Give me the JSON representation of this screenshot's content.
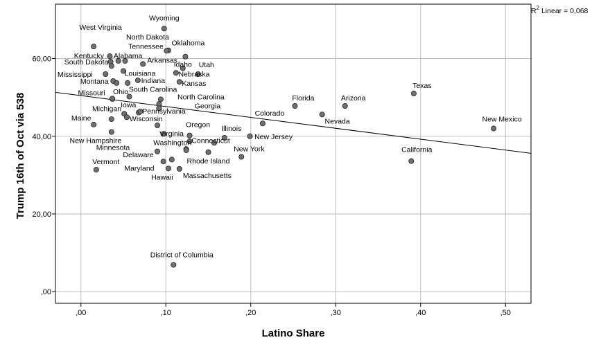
{
  "chart_data": {
    "type": "scatter",
    "xlabel": "Latino Share",
    "ylabel": "Trump 16th of Oct via 538",
    "xlim": [
      -0.03,
      0.53
    ],
    "ylim": [
      -3,
      74
    ],
    "x_ticks": [
      0.0,
      0.1,
      0.2,
      0.3,
      0.4,
      0.5
    ],
    "x_tick_labels": [
      ",00",
      ",10",
      ",20",
      ",30",
      ",40",
      ",50"
    ],
    "y_ticks": [
      0,
      20,
      40,
      60
    ],
    "y_tick_labels": [
      ",00",
      "20,00",
      "40,00",
      "60,00"
    ],
    "grid": true,
    "fit_line": {
      "label_prefix": "R",
      "label_sup": "2",
      "label_suffix": " Linear = 0,068",
      "x": [
        -0.03,
        0.53
      ],
      "y": [
        51.3,
        35.6
      ]
    },
    "colors": {
      "point_fill": "#707070",
      "point_stroke": "#222222",
      "grid": "#bdbdbd",
      "line": "#000000"
    },
    "points": [
      {
        "label": "Wyoming",
        "x": 0.098,
        "y": 67.7,
        "lx": 0,
        "ly": -12,
        "anchor": "middle"
      },
      {
        "label": "West Virginia",
        "x": 0.015,
        "y": 63.1,
        "lx": 10,
        "ly": -24,
        "anchor": "middle"
      },
      {
        "label": "North Dakota",
        "x": 0.103,
        "y": 62.1,
        "lx": -30,
        "ly": -16,
        "anchor": "middle"
      },
      {
        "label": "Tennessee",
        "x": 0.101,
        "y": 62.0,
        "lx": -30,
        "ly": -3,
        "anchor": "middle"
      },
      {
        "label": "Oklahoma",
        "x": 0.123,
        "y": 60.5,
        "lx": 4,
        "ly": -16,
        "anchor": "middle"
      },
      {
        "label": "Kentucky",
        "x": 0.034,
        "y": 60.6,
        "lx": -30,
        "ly": 3,
        "anchor": "middle"
      },
      {
        "label": "Alabama",
        "x": 0.044,
        "y": 59.4,
        "lx": 14,
        "ly": -4,
        "anchor": "middle"
      },
      {
        "label": "South Dakota",
        "x": 0.035,
        "y": 59.2,
        "lx": -35,
        "ly": 4,
        "anchor": "middle"
      },
      {
        "label": "",
        "x": 0.052,
        "y": 59.4,
        "lx": 0,
        "ly": 0,
        "anchor": "middle"
      },
      {
        "label": "",
        "x": 0.036,
        "y": 58.1,
        "lx": 0,
        "ly": 0,
        "anchor": "middle"
      },
      {
        "label": "Arkansas",
        "x": 0.073,
        "y": 58.6,
        "lx": 28,
        "ly": -2,
        "anchor": "middle"
      },
      {
        "label": "Idaho",
        "x": 0.12,
        "y": 57.5,
        "lx": 0,
        "ly": -2,
        "anchor": "middle"
      },
      {
        "label": "Utah",
        "x": 0.138,
        "y": 56.0,
        "lx": 12,
        "ly": -10,
        "anchor": "middle"
      },
      {
        "label": "Mississippi",
        "x": 0.029,
        "y": 56.0,
        "lx": -44,
        "ly": 4,
        "anchor": "middle"
      },
      {
        "label": "Louisiana",
        "x": 0.05,
        "y": 56.8,
        "lx": 24,
        "ly": 7,
        "anchor": "middle"
      },
      {
        "label": "Nebraska",
        "x": 0.112,
        "y": 56.3,
        "lx": 26,
        "ly": 5,
        "anchor": "middle"
      },
      {
        "label": "Montana",
        "x": 0.038,
        "y": 54.2,
        "lx": -27,
        "ly": 4,
        "anchor": "middle"
      },
      {
        "label": "Indiana",
        "x": 0.067,
        "y": 54.4,
        "lx": 22,
        "ly": 4,
        "anchor": "middle"
      },
      {
        "label": "Kansas",
        "x": 0.116,
        "y": 54.0,
        "lx": 21,
        "ly": 6,
        "anchor": "middle"
      },
      {
        "label": "",
        "x": 0.042,
        "y": 53.7,
        "lx": 0,
        "ly": 0,
        "anchor": "middle"
      },
      {
        "label": "",
        "x": 0.055,
        "y": 53.7,
        "lx": 0,
        "ly": 0,
        "anchor": "middle"
      },
      {
        "label": "Ohio",
        "x": 0.037,
        "y": 49.6,
        "lx": 12,
        "ly": -7,
        "anchor": "middle"
      },
      {
        "label": "Missouri",
        "x": 0.037,
        "y": 49.7,
        "lx": -30,
        "ly": -5,
        "anchor": "middle"
      },
      {
        "label": "South Carolina",
        "x": 0.057,
        "y": 50.2,
        "lx": 34,
        "ly": -7,
        "anchor": "middle"
      },
      {
        "label": "North Carolina",
        "x": 0.094,
        "y": 49.5,
        "lx": 58,
        "ly": 0,
        "anchor": "middle"
      },
      {
        "label": "",
        "x": 0.092,
        "y": 48.3,
        "lx": 0,
        "ly": 0,
        "anchor": "middle"
      },
      {
        "label": "Florida",
        "x": 0.252,
        "y": 47.8,
        "lx": 12,
        "ly": -8,
        "anchor": "middle"
      },
      {
        "label": "Arizona",
        "x": 0.311,
        "y": 47.8,
        "lx": 12,
        "ly": -8,
        "anchor": "middle"
      },
      {
        "label": "Texas",
        "x": 0.392,
        "y": 51.0,
        "lx": 12,
        "ly": -8,
        "anchor": "middle"
      },
      {
        "label": "Iowa",
        "x": 0.051,
        "y": 45.8,
        "lx": 6,
        "ly": -9,
        "anchor": "middle"
      },
      {
        "label": "Michigan",
        "x": 0.068,
        "y": 46.1,
        "lx": -46,
        "ly": -2,
        "anchor": "middle"
      },
      {
        "label": "Pennsylvania",
        "x": 0.07,
        "y": 46.4,
        "lx": 34,
        "ly": 3,
        "anchor": "middle"
      },
      {
        "label": "Georgia",
        "x": 0.092,
        "y": 47.2,
        "lx": 70,
        "ly": 0,
        "anchor": "middle"
      },
      {
        "label": "Nevada",
        "x": 0.284,
        "y": 45.6,
        "lx": 22,
        "ly": 13,
        "anchor": "middle"
      },
      {
        "label": "",
        "x": 0.054,
        "y": 44.9,
        "lx": 0,
        "ly": 0,
        "anchor": "middle"
      },
      {
        "label": "Maine",
        "x": 0.015,
        "y": 43.0,
        "lx": -18,
        "ly": -6,
        "anchor": "middle"
      },
      {
        "label": "Wisconsin",
        "x": 0.036,
        "y": 44.4,
        "lx": 50,
        "ly": 3,
        "anchor": "middle"
      },
      {
        "label": "Colorado",
        "x": 0.214,
        "y": 43.3,
        "lx": 10,
        "ly": -11,
        "anchor": "middle"
      },
      {
        "label": "New Mexico",
        "x": 0.486,
        "y": 42.0,
        "lx": 12,
        "ly": -10,
        "anchor": "middle"
      },
      {
        "label": "",
        "x": 0.09,
        "y": 42.8,
        "lx": 0,
        "ly": 0,
        "anchor": "middle"
      },
      {
        "label": "New Hampshire",
        "x": 0.036,
        "y": 41.1,
        "lx": -23,
        "ly": 16,
        "anchor": "middle"
      },
      {
        "label": "Virginia",
        "x": 0.097,
        "y": 40.6,
        "lx": 12,
        "ly": 3,
        "anchor": "middle"
      },
      {
        "label": "Oregon",
        "x": 0.128,
        "y": 40.2,
        "lx": 12,
        "ly": -12,
        "anchor": "middle"
      },
      {
        "label": "Illinois",
        "x": 0.169,
        "y": 39.6,
        "lx": 10,
        "ly": -10,
        "anchor": "middle"
      },
      {
        "label": "New Jersey",
        "x": 0.199,
        "y": 40.0,
        "lx": 34,
        "ly": 4,
        "anchor": "middle"
      },
      {
        "label": "Washington",
        "x": 0.124,
        "y": 36.7,
        "lx": -20,
        "ly": -6,
        "anchor": "middle"
      },
      {
        "label": "Connecticut",
        "x": 0.157,
        "y": 38.3,
        "lx": -5,
        "ly": 0,
        "anchor": "middle"
      },
      {
        "label": "",
        "x": 0.128,
        "y": 38.7,
        "lx": 0,
        "ly": 0,
        "anchor": "middle"
      },
      {
        "label": "Minnesota",
        "x": 0.09,
        "y": 36.1,
        "lx": -64,
        "ly": -2,
        "anchor": "middle"
      },
      {
        "label": "",
        "x": 0.124,
        "y": 36.4,
        "lx": 0,
        "ly": 0,
        "anchor": "middle"
      },
      {
        "label": "New York",
        "x": 0.189,
        "y": 34.7,
        "lx": 11,
        "ly": -8,
        "anchor": "middle"
      },
      {
        "label": "Rhode Island",
        "x": 0.15,
        "y": 35.9,
        "lx": 0,
        "ly": 16,
        "anchor": "middle"
      },
      {
        "label": "California",
        "x": 0.389,
        "y": 33.6,
        "lx": 8,
        "ly": -13,
        "anchor": "middle"
      },
      {
        "label": "Delaware",
        "x": 0.097,
        "y": 33.5,
        "lx": -36,
        "ly": -6,
        "anchor": "middle"
      },
      {
        "label": "Vermont",
        "x": 0.018,
        "y": 31.4,
        "lx": 14,
        "ly": -8,
        "anchor": "middle"
      },
      {
        "label": "Maryland",
        "x": 0.103,
        "y": 31.7,
        "lx": -42,
        "ly": 3,
        "anchor": "middle"
      },
      {
        "label": "Massachusetts",
        "x": 0.116,
        "y": 31.6,
        "lx": 40,
        "ly": 13,
        "anchor": "middle"
      },
      {
        "label": "Hawaii",
        "x": 0.107,
        "y": 34.0,
        "lx": -14,
        "ly": 29,
        "anchor": "middle"
      },
      {
        "label": "District of Columbia",
        "x": 0.109,
        "y": 6.9,
        "lx": 12,
        "ly": -11,
        "anchor": "middle"
      }
    ]
  }
}
